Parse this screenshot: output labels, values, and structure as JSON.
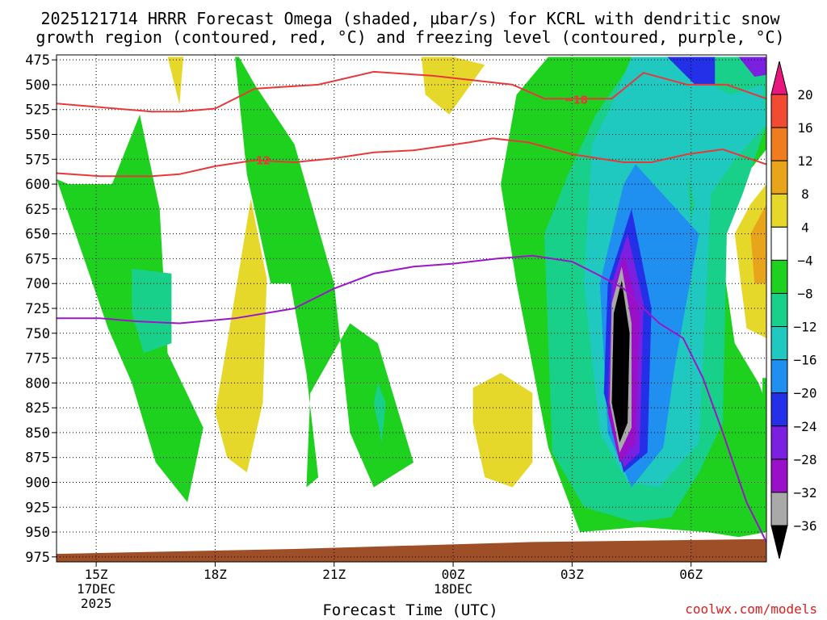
{
  "title_line1": "2025121714 HRRR Forecast Omega (shaded, µbar/s) for KCRL with dendritic snow",
  "title_line2": "growth region (contoured, red, °C) and freezing level (contoured, purple, °C)",
  "xlabel": "Forecast Time (UTC)",
  "credit": "coolwx.com/models",
  "colors": {
    "omega_up_strong": "#000000",
    "omega_m32": "#a9a9a9",
    "omega_m28": "#9a10c8",
    "omega_m24": "#7b1fe0",
    "omega_m20": "#2430e8",
    "omega_m16": "#1f8ff0",
    "omega_m12": "#1fc9c0",
    "omega_m8": "#18d08a",
    "omega_m4": "#1ed11e",
    "omega_neutral": "#ffffff",
    "omega_p4": "#e6d82a",
    "omega_p8": "#e8a51c",
    "omega_p12": "#f07c20",
    "omega_p16": "#f24b33",
    "omega_p20": "#e8177f",
    "dgz_contour": "#e8383a",
    "freezing_contour": "#9a17c9",
    "terrain": "#9e4f28"
  },
  "chart_data": {
    "type": "heatmap",
    "title": "2025121714 HRRR Forecast Omega (shaded, µbar/s) for KCRL with dendritic snow growth region (contoured, red, °C) and freezing level (contoured, purple, °C)",
    "xlabel": "Forecast Time (UTC)",
    "ylabel": "",
    "x_ticks": [
      {
        "label": "15Z",
        "sub1": "17DEC",
        "sub2": "2025",
        "hour": 15
      },
      {
        "label": "18Z",
        "sub1": "",
        "sub2": "",
        "hour": 18
      },
      {
        "label": "21Z",
        "sub1": "",
        "sub2": "",
        "hour": 21
      },
      {
        "label": "00Z",
        "sub1": "18DEC",
        "sub2": "",
        "hour": 24
      },
      {
        "label": "03Z",
        "sub1": "",
        "sub2": "",
        "hour": 27
      },
      {
        "label": "06Z",
        "sub1": "",
        "sub2": "",
        "hour": 30
      }
    ],
    "x_range_hours": [
      14,
      31.9
    ],
    "y_ticks": [
      475,
      500,
      525,
      550,
      575,
      600,
      625,
      650,
      675,
      700,
      725,
      750,
      775,
      800,
      825,
      850,
      875,
      900,
      925,
      950,
      975
    ],
    "y_range_mb": [
      470,
      980
    ],
    "colorbar_labels": [
      "20",
      "16",
      "12",
      "8",
      "4",
      "−4",
      "−8",
      "−12",
      "−16",
      "−20",
      "−24",
      "−28",
      "−32",
      "−36"
    ],
    "colorbar_levels": [
      20,
      16,
      12,
      8,
      4,
      -4,
      -8,
      -12,
      -16,
      -20,
      -24,
      -28,
      -32,
      -36
    ],
    "omega_regions": [
      {
        "level": -4,
        "hour": [
          14.0,
          15.3,
          15.9,
          16.5,
          17.3,
          17.7,
          16.8,
          16.6,
          16.1,
          15.4,
          14.3,
          14.0
        ],
        "mb": [
          595,
          745,
          800,
          880,
          920,
          845,
          770,
          625,
          530,
          600,
          600,
          595
        ]
      },
      {
        "level": -8,
        "hour": [
          15.9,
          16.9,
          16.9,
          16.2,
          15.9
        ],
        "mb": [
          685,
          690,
          760,
          770,
          730
        ]
      },
      {
        "level": -4,
        "hour": [
          18.5,
          18.8,
          19.4,
          19.9,
          20.3,
          20.6,
          20.3,
          20.4,
          21.4,
          22.1,
          23.0,
          22.0,
          21.4,
          21.0,
          20.0,
          19.0,
          18.6,
          18.5
        ],
        "mb": [
          472,
          590,
          700,
          700,
          790,
          895,
          905,
          810,
          740,
          760,
          880,
          905,
          850,
          700,
          560,
          500,
          472,
          472
        ]
      },
      {
        "level": -8,
        "hour": [
          22.1,
          22.3,
          22.2,
          22.0,
          22.1
        ],
        "mb": [
          800,
          820,
          860,
          820,
          800
        ]
      },
      {
        "level": 4,
        "hour": [
          16.8,
          17.2,
          17.1,
          16.8
        ],
        "mb": [
          472,
          472,
          520,
          472
        ]
      },
      {
        "level": 4,
        "hour": [
          18.9,
          19.3,
          19.2,
          18.8,
          18.3,
          18.0,
          18.3,
          18.9
        ],
        "mb": [
          615,
          695,
          820,
          890,
          875,
          830,
          760,
          615
        ]
      },
      {
        "level": 4,
        "hour": [
          23.2,
          24.0,
          24.8,
          23.9,
          23.3
        ],
        "mb": [
          472,
          472,
          480,
          530,
          510
        ]
      },
      {
        "level": 4,
        "hour": [
          24.5,
          25.2,
          26.0,
          26.0,
          25.5,
          24.8,
          24.5
        ],
        "mb": [
          805,
          790,
          810,
          880,
          905,
          895,
          840
        ]
      },
      {
        "level": -4,
        "hour": [
          26.4,
          27.6,
          28.2,
          29.0,
          30.2,
          31.2,
          31.9,
          31.9,
          31.2,
          30.7,
          31.1,
          31.7,
          31.9,
          31.9,
          31.2,
          30.4,
          28.7,
          27.2,
          26.4,
          25.6,
          25.2,
          25.6,
          26.4
        ],
        "mb": [
          472,
          472,
          472,
          472,
          472,
          472,
          472,
          565,
          600,
          650,
          760,
          800,
          820,
          950,
          955,
          950,
          945,
          950,
          865,
          700,
          600,
          510,
          472
        ]
      },
      {
        "level": -8,
        "hour": [
          28.6,
          29.2,
          30.0,
          31.0,
          31.9,
          31.9,
          31.3,
          30.9,
          30.8,
          30.2,
          29.5,
          28.6,
          27.3,
          26.5,
          26.3,
          26.9,
          27.6,
          28.6
        ],
        "mb": [
          472,
          472,
          472,
          472,
          472,
          540,
          610,
          650,
          840,
          890,
          935,
          940,
          925,
          870,
          650,
          590,
          530,
          472
        ]
      },
      {
        "level": -12,
        "hour": [
          28.5,
          29.7,
          30.5,
          31.0,
          31.8,
          31.9,
          31.1,
          30.5,
          30.2,
          29.2,
          28.4,
          27.7,
          27.3,
          27.5,
          28.0,
          28.5
        ],
        "mb": [
          472,
          472,
          500,
          510,
          500,
          540,
          575,
          610,
          860,
          905,
          900,
          850,
          700,
          560,
          520,
          472
        ]
      },
      {
        "level": -16,
        "hour": [
          28.6,
          30.2,
          29.6,
          29.3,
          28.5,
          27.9,
          27.7,
          28.3,
          28.6
        ],
        "mb": [
          580,
          650,
          780,
          865,
          905,
          850,
          700,
          600,
          580
        ]
      },
      {
        "level": -20,
        "hour": [
          28.5,
          29.0,
          28.9,
          28.3,
          27.8,
          27.9,
          28.5
        ],
        "mb": [
          625,
          725,
          870,
          890,
          810,
          700,
          625
        ]
      },
      {
        "level": -24,
        "hour": [
          28.4,
          28.8,
          28.7,
          28.3,
          27.9,
          28.0,
          28.4
        ],
        "mb": [
          650,
          720,
          870,
          885,
          820,
          700,
          650
        ]
      },
      {
        "level": -28,
        "hour": [
          28.3,
          28.7,
          28.6,
          28.2,
          27.9,
          28.1,
          28.3
        ],
        "mb": [
          670,
          730,
          860,
          880,
          830,
          700,
          670
        ]
      },
      {
        "level": -32,
        "hour": [
          28.25,
          28.5,
          28.5,
          28.2,
          27.95,
          28.0,
          28.25
        ],
        "mb": [
          683,
          740,
          845,
          870,
          820,
          720,
          683
        ]
      },
      {
        "level": -36,
        "hour": [
          28.25,
          28.45,
          28.4,
          28.2,
          28.0,
          28.05,
          28.25
        ],
        "mb": [
          697,
          750,
          840,
          860,
          820,
          730,
          697
        ]
      },
      {
        "level": -8,
        "hour": [
          29.9,
          30.1,
          30.0,
          29.9
        ],
        "mb": [
          590,
          620,
          635,
          590
        ]
      },
      {
        "level": 4,
        "hour": [
          31.9,
          31.9,
          31.4,
          31.1,
          31.5,
          31.9
        ],
        "mb": [
          600,
          755,
          745,
          650,
          620,
          600
        ]
      },
      {
        "level": 8,
        "hour": [
          31.9,
          31.9,
          31.6,
          31.5,
          31.9
        ],
        "mb": [
          620,
          700,
          700,
          650,
          620
        ]
      },
      {
        "level": -20,
        "hour": [
          29.4,
          30.6,
          30.6,
          30.1,
          29.4
        ],
        "mb": [
          472,
          472,
          500,
          500,
          472
        ]
      },
      {
        "level": -24,
        "hour": [
          31.2,
          31.9,
          31.9,
          31.6,
          31.2
        ],
        "mb": [
          472,
          472,
          490,
          492,
          472
        ]
      },
      {
        "level": -4,
        "hour": [
          31.8,
          31.9,
          31.9,
          31.8
        ],
        "mb": [
          795,
          795,
          840,
          840
        ]
      }
    ],
    "dgz_minus18": {
      "label": "−18",
      "hour": [
        14.0,
        15.5,
        16.4,
        17.1,
        18.0,
        19.0,
        20.6,
        22.0,
        23.5,
        25.5,
        26.3,
        27.1,
        28.0,
        28.8,
        29.9,
        30.9,
        31.9
      ],
      "mb": [
        519,
        524,
        527,
        527,
        524,
        504,
        500,
        487,
        491,
        500,
        514,
        514,
        514,
        488,
        500,
        500,
        514
      ]
    },
    "dgz_minus12": {
      "label": "−12",
      "hour": [
        14.0,
        15.1,
        16.4,
        17.1,
        18.0,
        19.0,
        20.0,
        21.0,
        22.0,
        23.0,
        24.4,
        25.0,
        25.9,
        27.0,
        28.3,
        29.0,
        29.9,
        30.8,
        31.9
      ],
      "mb": [
        589,
        592,
        592,
        590,
        582,
        576,
        578,
        574,
        568,
        566,
        558,
        554,
        558,
        570,
        578,
        578,
        570,
        565,
        580
      ]
    },
    "freezing_level": {
      "label": "0",
      "hour": [
        14.0,
        15.1,
        16.0,
        17.1,
        18.5,
        20.0,
        21.0,
        22.0,
        23.0,
        24.0,
        25.1,
        26.0,
        27.0,
        27.6,
        28.3,
        28.8,
        29.2,
        29.8,
        30.3,
        30.8,
        31.4,
        31.9
      ],
      "mb": [
        735,
        735,
        738,
        740,
        735,
        725,
        705,
        690,
        683,
        680,
        675,
        672,
        678,
        690,
        705,
        725,
        740,
        755,
        795,
        850,
        920,
        960
      ]
    },
    "terrain_top_mb": {
      "hour": [
        14.0,
        20.0,
        26.0,
        31.9
      ],
      "mb": [
        972,
        967,
        960,
        957
      ]
    }
  }
}
